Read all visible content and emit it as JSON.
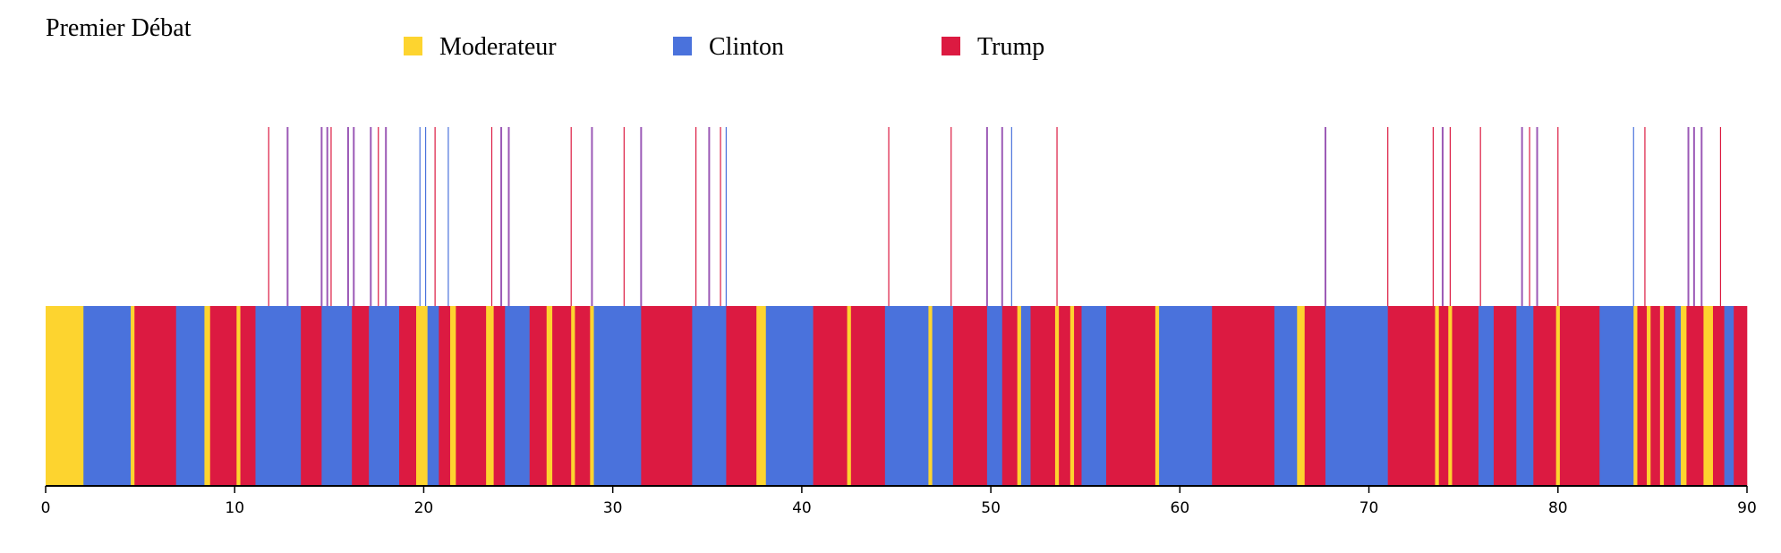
{
  "colors": {
    "moderateur": "#fdd42f",
    "clinton": "#4a72dc",
    "trump": "#dc1a41",
    "interruption": "#9b59b6"
  },
  "chart_data": {
    "type": "bar",
    "title": "Premier Débat",
    "xlim": [
      0,
      90
    ],
    "xticks": [
      "0",
      "10",
      "20",
      "30",
      "40",
      "50",
      "60",
      "70",
      "80",
      "90"
    ],
    "legend": [
      {
        "key": "M",
        "label": "Moderateur"
      },
      {
        "key": "C",
        "label": "Clinton"
      },
      {
        "key": "T",
        "label": "Trump"
      }
    ],
    "segments": [
      [
        0,
        2,
        "M"
      ],
      [
        2,
        4.5,
        "C"
      ],
      [
        4.5,
        4.7,
        "M"
      ],
      [
        4.7,
        6.9,
        "T"
      ],
      [
        6.9,
        8.4,
        "C"
      ],
      [
        8.4,
        8.7,
        "M"
      ],
      [
        8.7,
        10.1,
        "T"
      ],
      [
        10.1,
        10.3,
        "M"
      ],
      [
        10.3,
        11.1,
        "T"
      ],
      [
        11.1,
        13.5,
        "C"
      ],
      [
        13.5,
        14.6,
        "T"
      ],
      [
        14.6,
        16.2,
        "C"
      ],
      [
        16.2,
        17.1,
        "T"
      ],
      [
        17.1,
        18.7,
        "C"
      ],
      [
        18.7,
        19.6,
        "T"
      ],
      [
        19.6,
        20.2,
        "M"
      ],
      [
        20.2,
        20.8,
        "C"
      ],
      [
        20.8,
        21.4,
        "T"
      ],
      [
        21.4,
        21.7,
        "M"
      ],
      [
        21.7,
        23.3,
        "T"
      ],
      [
        23.3,
        23.7,
        "M"
      ],
      [
        23.7,
        24.3,
        "T"
      ],
      [
        24.3,
        25.6,
        "C"
      ],
      [
        25.6,
        26.5,
        "T"
      ],
      [
        26.5,
        26.8,
        "M"
      ],
      [
        26.8,
        27.8,
        "T"
      ],
      [
        27.8,
        28.0,
        "M"
      ],
      [
        28.0,
        28.8,
        "T"
      ],
      [
        28.8,
        29.0,
        "M"
      ],
      [
        29.0,
        31.5,
        "C"
      ],
      [
        31.5,
        34.2,
        "T"
      ],
      [
        34.2,
        35.1,
        "C"
      ],
      [
        35.1,
        36.0,
        "C"
      ],
      [
        36.0,
        37.6,
        "T"
      ],
      [
        37.6,
        38.1,
        "M"
      ],
      [
        38.1,
        40.6,
        "C"
      ],
      [
        40.6,
        42.4,
        "T"
      ],
      [
        42.4,
        42.6,
        "M"
      ],
      [
        42.6,
        44.4,
        "T"
      ],
      [
        44.4,
        46.7,
        "C"
      ],
      [
        46.7,
        46.9,
        "M"
      ],
      [
        46.9,
        48.0,
        "C"
      ],
      [
        48.0,
        49.8,
        "T"
      ],
      [
        49.8,
        50.6,
        "C"
      ],
      [
        50.6,
        51.4,
        "T"
      ],
      [
        51.4,
        51.6,
        "M"
      ],
      [
        51.6,
        52.1,
        "C"
      ],
      [
        52.1,
        53.4,
        "T"
      ],
      [
        53.4,
        53.6,
        "M"
      ],
      [
        53.6,
        54.2,
        "T"
      ],
      [
        54.2,
        54.4,
        "M"
      ],
      [
        54.4,
        54.8,
        "T"
      ],
      [
        54.8,
        56.1,
        "C"
      ],
      [
        56.1,
        58.7,
        "T"
      ],
      [
        58.7,
        58.9,
        "M"
      ],
      [
        58.9,
        61.7,
        "C"
      ],
      [
        61.7,
        65.0,
        "T"
      ],
      [
        65.0,
        66.2,
        "C"
      ],
      [
        66.2,
        66.6,
        "M"
      ],
      [
        66.6,
        67.7,
        "T"
      ],
      [
        67.7,
        71.0,
        "C"
      ],
      [
        71.0,
        73.5,
        "T"
      ],
      [
        73.5,
        73.7,
        "M"
      ],
      [
        73.7,
        74.2,
        "T"
      ],
      [
        74.2,
        74.4,
        "M"
      ],
      [
        74.4,
        75.8,
        "T"
      ],
      [
        75.8,
        76.6,
        "C"
      ],
      [
        76.6,
        77.8,
        "T"
      ],
      [
        77.8,
        78.7,
        "C"
      ],
      [
        78.7,
        79.9,
        "T"
      ],
      [
        79.9,
        80.1,
        "M"
      ],
      [
        80.1,
        82.2,
        "T"
      ],
      [
        82.2,
        84.0,
        "C"
      ],
      [
        84.0,
        84.2,
        "M"
      ],
      [
        84.2,
        84.7,
        "T"
      ],
      [
        84.7,
        84.9,
        "M"
      ],
      [
        84.9,
        85.4,
        "T"
      ],
      [
        85.4,
        85.6,
        "M"
      ],
      [
        85.6,
        86.2,
        "T"
      ],
      [
        86.2,
        86.5,
        "C"
      ],
      [
        86.5,
        86.8,
        "M"
      ],
      [
        86.8,
        87.7,
        "T"
      ],
      [
        87.7,
        88.2,
        "M"
      ],
      [
        88.2,
        88.8,
        "T"
      ],
      [
        88.8,
        89.3,
        "C"
      ],
      [
        89.3,
        90.0,
        "T"
      ]
    ],
    "interruptions": [
      [
        11.8,
        "T"
      ],
      [
        12.8,
        "I"
      ],
      [
        14.6,
        "I"
      ],
      [
        14.9,
        "I"
      ],
      [
        15.1,
        "T"
      ],
      [
        16.0,
        "I"
      ],
      [
        16.3,
        "I"
      ],
      [
        17.2,
        "I"
      ],
      [
        17.6,
        "T"
      ],
      [
        18.0,
        "I"
      ],
      [
        19.8,
        "C"
      ],
      [
        20.1,
        "C"
      ],
      [
        20.6,
        "T"
      ],
      [
        21.3,
        "C"
      ],
      [
        23.6,
        "T"
      ],
      [
        24.1,
        "I"
      ],
      [
        24.5,
        "I"
      ],
      [
        27.8,
        "T"
      ],
      [
        28.9,
        "I"
      ],
      [
        30.6,
        "T"
      ],
      [
        31.5,
        "I"
      ],
      [
        34.4,
        "T"
      ],
      [
        35.1,
        "I"
      ],
      [
        35.7,
        "T"
      ],
      [
        36.0,
        "C"
      ],
      [
        44.6,
        "T"
      ],
      [
        47.9,
        "T"
      ],
      [
        49.8,
        "I"
      ],
      [
        50.6,
        "I"
      ],
      [
        51.1,
        "C"
      ],
      [
        53.5,
        "T"
      ],
      [
        67.7,
        "I"
      ],
      [
        71.0,
        "T"
      ],
      [
        73.4,
        "T"
      ],
      [
        73.9,
        "I"
      ],
      [
        74.3,
        "T"
      ],
      [
        75.9,
        "T"
      ],
      [
        78.1,
        "I"
      ],
      [
        78.5,
        "T"
      ],
      [
        78.9,
        "I"
      ],
      [
        80.0,
        "T"
      ],
      [
        84.0,
        "C"
      ],
      [
        84.6,
        "T"
      ],
      [
        86.9,
        "I"
      ],
      [
        87.2,
        "I"
      ],
      [
        87.6,
        "I"
      ],
      [
        88.6,
        "T"
      ]
    ]
  }
}
